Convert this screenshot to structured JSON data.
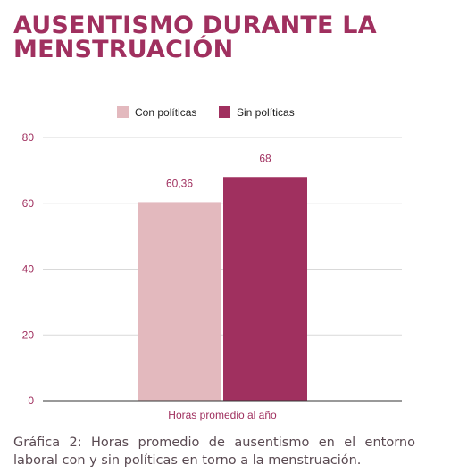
{
  "title_lines": [
    "AUSENTISMO DURANTE LA",
    "MENSTRUACIÓN"
  ],
  "caption": "Gráfica 2: Horas promedio de ausentismo en el entorno laboral con y sin políticas en torno a la menstruación.",
  "colors": {
    "title": "#a0305f",
    "series_con": "#e3b9be",
    "series_sin": "#a0305f",
    "axis_text": "#a0305f",
    "grid": "#d9d9d9",
    "baseline": "#333333",
    "caption": "#5a4a52"
  },
  "chart_data": {
    "type": "bar",
    "categories": [
      "Horas promedio al año"
    ],
    "series": [
      {
        "name": "Con políticas",
        "values": [
          60.36
        ],
        "label": "60,36",
        "color": "#e3b9be"
      },
      {
        "name": "Sin políticas",
        "values": [
          68
        ],
        "label": "68",
        "color": "#a0305f"
      }
    ],
    "ylim": [
      0,
      80
    ],
    "yticks": [
      0,
      20,
      40,
      60,
      80
    ],
    "grid": true,
    "legend": "top-center",
    "title": "",
    "xlabel": "",
    "ylabel": ""
  }
}
